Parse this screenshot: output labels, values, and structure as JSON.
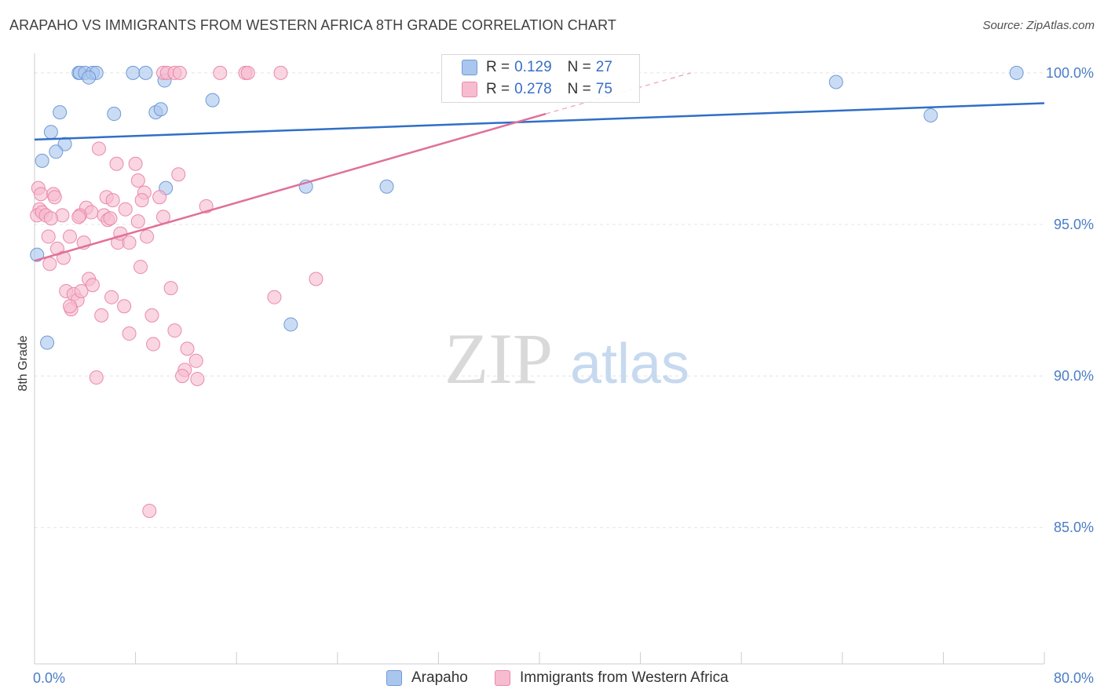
{
  "title": "ARAPAHO VS IMMIGRANTS FROM WESTERN AFRICA 8TH GRADE CORRELATION CHART",
  "source": "Source: ZipAtlas.com",
  "watermark": {
    "zip": "ZIP",
    "atlas": "atlas"
  },
  "stats": [
    {
      "r_label": "R =",
      "r_value": "0.129",
      "n_label": "N =",
      "n_value": "27",
      "color": "#a9c6ee",
      "border": "#6f9ad6"
    },
    {
      "r_label": "R =",
      "r_value": "0.278",
      "n_label": "N =",
      "n_value": "75",
      "color": "#f7bcd0",
      "border": "#e98aa9"
    }
  ],
  "legend": [
    {
      "label": "Arapaho",
      "color": "#a9c6ee",
      "border": "#6f9ad6"
    },
    {
      "label": "Immigrants from Western Africa",
      "color": "#f7bcd0",
      "border": "#e98aa9"
    }
  ],
  "chart_data": {
    "type": "scatter",
    "title": "ARAPAHO VS IMMIGRANTS FROM WESTERN AFRICA 8TH GRADE CORRELATION CHART",
    "xlabel": "",
    "ylabel": "8th Grade",
    "xlim": [
      0,
      80
    ],
    "ylim": [
      80.5,
      100.8
    ],
    "x_tick_labels": [
      "0.0%",
      "80.0%"
    ],
    "y_ticks": [
      85,
      90,
      95,
      100
    ],
    "y_tick_labels": [
      "85.0%",
      "90.0%",
      "95.0%",
      "100.0%"
    ],
    "grid": true,
    "series": [
      {
        "name": "Arapaho",
        "color": "#a9c6ee",
        "stroke": "#6f9ad6",
        "line_color": "#2f6fc6",
        "trend": {
          "x0": 0,
          "y0": 97.8,
          "x1": 80,
          "y1": 99.0
        },
        "points": [
          [
            3.5,
            100.0
          ],
          [
            3.6,
            100.0
          ],
          [
            4.0,
            100.0
          ],
          [
            4.6,
            100.0
          ],
          [
            4.9,
            100.0
          ],
          [
            7.8,
            100.0
          ],
          [
            8.8,
            100.0
          ],
          [
            4.3,
            99.85
          ],
          [
            10.3,
            99.75
          ],
          [
            63.5,
            99.7
          ],
          [
            77.8,
            100.0
          ],
          [
            2.0,
            98.7
          ],
          [
            6.3,
            98.65
          ],
          [
            9.6,
            98.7
          ],
          [
            10.0,
            98.8
          ],
          [
            14.1,
            99.1
          ],
          [
            1.3,
            98.05
          ],
          [
            2.4,
            97.65
          ],
          [
            1.7,
            97.4
          ],
          [
            0.6,
            97.1
          ],
          [
            71.0,
            98.6
          ],
          [
            10.4,
            96.2
          ],
          [
            21.5,
            96.25
          ],
          [
            27.9,
            96.25
          ],
          [
            0.2,
            94.0
          ],
          [
            1.0,
            91.1
          ],
          [
            20.3,
            91.7
          ]
        ]
      },
      {
        "name": "Immigrants from Western Africa",
        "color": "#f7bcd0",
        "stroke": "#e98aa9",
        "line_color": "#e0709a",
        "trend": {
          "x0": 0,
          "y0": 93.8,
          "x1": 40.5,
          "y1": 98.65
        },
        "trend_ext": {
          "x0": 40.5,
          "y0": 98.65,
          "x1": 52,
          "y1": 100.0
        },
        "points": [
          [
            10.2,
            100.0
          ],
          [
            10.5,
            100.0
          ],
          [
            11.1,
            100.0
          ],
          [
            11.5,
            100.0
          ],
          [
            14.7,
            100.0
          ],
          [
            16.7,
            100.0
          ],
          [
            16.9,
            100.0
          ],
          [
            19.5,
            100.0
          ],
          [
            5.1,
            97.5
          ],
          [
            6.5,
            97.0
          ],
          [
            8.0,
            97.0
          ],
          [
            11.4,
            96.65
          ],
          [
            8.2,
            96.45
          ],
          [
            0.3,
            96.2
          ],
          [
            0.5,
            96.0
          ],
          [
            1.5,
            96.0
          ],
          [
            1.6,
            95.9
          ],
          [
            8.7,
            96.05
          ],
          [
            9.9,
            95.9
          ],
          [
            5.7,
            95.9
          ],
          [
            6.2,
            95.8
          ],
          [
            8.5,
            95.8
          ],
          [
            13.6,
            95.6
          ],
          [
            0.4,
            95.5
          ],
          [
            0.2,
            95.3
          ],
          [
            0.6,
            95.4
          ],
          [
            0.9,
            95.3
          ],
          [
            4.1,
            95.55
          ],
          [
            4.5,
            95.4
          ],
          [
            5.5,
            95.3
          ],
          [
            3.6,
            95.3
          ],
          [
            2.2,
            95.3
          ],
          [
            1.3,
            95.2
          ],
          [
            7.2,
            95.5
          ],
          [
            5.8,
            95.15
          ],
          [
            6.0,
            95.2
          ],
          [
            8.2,
            95.1
          ],
          [
            10.2,
            95.25
          ],
          [
            3.5,
            95.25
          ],
          [
            1.1,
            94.6
          ],
          [
            2.8,
            94.6
          ],
          [
            6.6,
            94.4
          ],
          [
            6.8,
            94.7
          ],
          [
            8.9,
            94.6
          ],
          [
            3.9,
            94.4
          ],
          [
            7.5,
            94.4
          ],
          [
            1.8,
            94.2
          ],
          [
            2.3,
            93.9
          ],
          [
            1.2,
            93.7
          ],
          [
            8.4,
            93.6
          ],
          [
            4.3,
            93.2
          ],
          [
            4.6,
            93.0
          ],
          [
            22.3,
            93.2
          ],
          [
            10.8,
            92.9
          ],
          [
            2.5,
            92.8
          ],
          [
            3.1,
            92.7
          ],
          [
            3.4,
            92.5
          ],
          [
            3.7,
            92.8
          ],
          [
            6.1,
            92.6
          ],
          [
            19.0,
            92.6
          ],
          [
            2.9,
            92.2
          ],
          [
            2.8,
            92.3
          ],
          [
            7.1,
            92.3
          ],
          [
            5.3,
            92.0
          ],
          [
            9.3,
            92.0
          ],
          [
            7.5,
            91.4
          ],
          [
            11.1,
            91.5
          ],
          [
            9.4,
            91.05
          ],
          [
            12.1,
            90.9
          ],
          [
            12.8,
            90.5
          ],
          [
            11.9,
            90.2
          ],
          [
            11.7,
            90.0
          ],
          [
            12.9,
            89.9
          ],
          [
            4.9,
            89.95
          ],
          [
            9.1,
            85.55
          ]
        ]
      }
    ]
  }
}
